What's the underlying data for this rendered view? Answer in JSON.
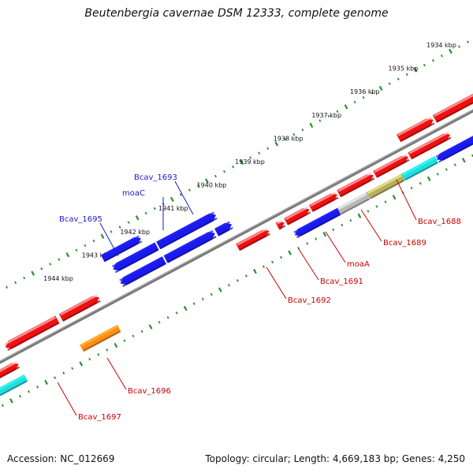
{
  "title": "Beutenbergia cavernae DSM 12333, complete genome",
  "footer": {
    "accession": "Accession: NC_012669",
    "topology": "Topology: circular; Length: 4,669,183 bp; Genes: 4,250"
  },
  "colors": {
    "backbone": "#7a7a7a",
    "tick": "#2e8b2e",
    "label_top_strand": "#1a1acc",
    "label_bottom_strand": "#cc0000",
    "red": "#ee1111",
    "blue": "#1a1aee",
    "cyan": "#22dddd",
    "olive": "#b5b060",
    "grey": "#b8b8b8",
    "orange": "#ff8c1a"
  },
  "kbp_labels": [
    "1934 kbp",
    "1935 kbp",
    "1936 kbp",
    "1937 kbp",
    "1938 kbp",
    "1939 kbp",
    "1940 kbp",
    "1941 kbp",
    "1942 kbp",
    "1943 kbp",
    "1944 kbp"
  ],
  "genes": [
    {
      "label": "Bcav_1688",
      "strand": "bottom",
      "color": "cyan"
    },
    {
      "label": "Bcav_1689",
      "strand": "bottom",
      "color": "olive"
    },
    {
      "label": "moaA",
      "strand": "bottom",
      "color": "grey"
    },
    {
      "label": "Bcav_1691",
      "strand": "bottom",
      "color": "blue"
    },
    {
      "label": "Bcav_1692",
      "strand": "bottom",
      "color": "red"
    },
    {
      "label": "Bcav_1693",
      "strand": "top",
      "color": "blue"
    },
    {
      "label": "moaC",
      "strand": "top",
      "color": "blue"
    },
    {
      "label": "Bcav_1695",
      "strand": "top",
      "color": "blue"
    },
    {
      "label": "Bcav_1696",
      "strand": "bottom",
      "color": "orange"
    },
    {
      "label": "Bcav_1697",
      "strand": "bottom",
      "color": "red"
    }
  ]
}
